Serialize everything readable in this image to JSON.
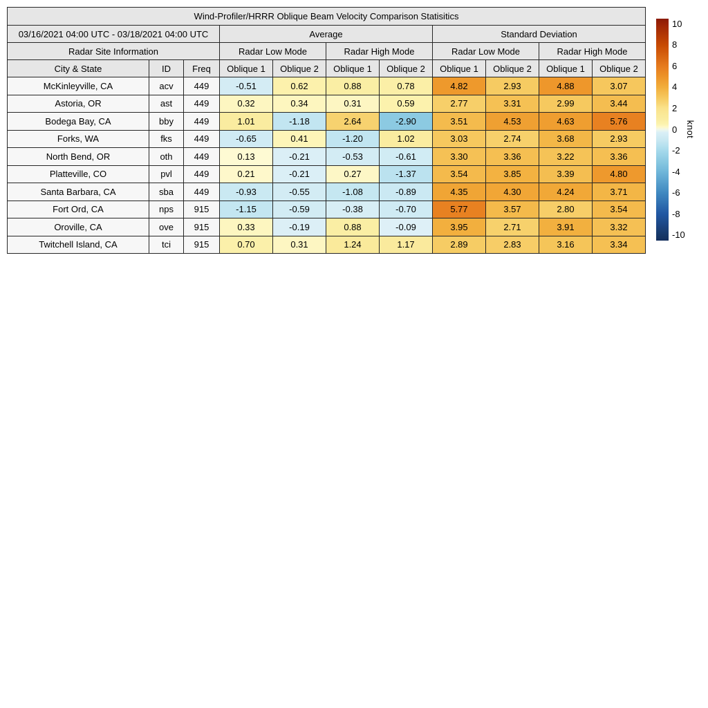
{
  "title": "Wind-Profiler/HRRR Oblique Beam Velocity Comparison Statisitics",
  "table": {
    "date_range": "03/16/2021 04:00 UTC - 03/18/2021 04:00 UTC",
    "group_headers": {
      "average": "Average",
      "std": "Standard Deviation"
    },
    "mode_headers": {
      "site_info": "Radar Site Information",
      "low": "Radar Low Mode",
      "high": "Radar High Mode"
    },
    "col_headers": {
      "city": "City & State",
      "id": "ID",
      "freq": "Freq",
      "oblique1": "Oblique 1",
      "oblique2": "Oblique 2"
    }
  },
  "chart_data": {
    "type": "table",
    "title": "Wind-Profiler/HRRR Oblique Beam Velocity Comparison Statisitics",
    "value_columns": [
      "Average Radar Low Mode Oblique 1",
      "Average Radar Low Mode Oblique 2",
      "Average Radar High Mode Oblique 1",
      "Average Radar High Mode Oblique 2",
      "Standard Deviation Radar Low Mode Oblique 1",
      "Standard Deviation Radar Low Mode Oblique 2",
      "Standard Deviation Radar High Mode Oblique 1",
      "Standard Deviation Radar High Mode Oblique 2"
    ],
    "rows": [
      {
        "city": "McKinleyville, CA",
        "id": "acv",
        "freq": "449",
        "values": [
          -0.51,
          0.62,
          0.88,
          0.78,
          4.82,
          2.93,
          4.88,
          3.07
        ]
      },
      {
        "city": "Astoria, OR",
        "id": "ast",
        "freq": "449",
        "values": [
          0.32,
          0.34,
          0.31,
          0.59,
          2.77,
          3.31,
          2.99,
          3.44
        ]
      },
      {
        "city": "Bodega Bay, CA",
        "id": "bby",
        "freq": "449",
        "values": [
          1.01,
          -1.18,
          2.64,
          -2.9,
          3.51,
          4.53,
          4.63,
          5.76
        ]
      },
      {
        "city": "Forks, WA",
        "id": "fks",
        "freq": "449",
        "values": [
          -0.65,
          0.41,
          -1.2,
          1.02,
          3.03,
          2.74,
          3.68,
          2.93
        ]
      },
      {
        "city": "North Bend, OR",
        "id": "oth",
        "freq": "449",
        "values": [
          0.13,
          -0.21,
          -0.53,
          -0.61,
          3.3,
          3.36,
          3.22,
          3.36
        ]
      },
      {
        "city": "Platteville, CO",
        "id": "pvl",
        "freq": "449",
        "values": [
          0.21,
          -0.21,
          0.27,
          -1.37,
          3.54,
          3.85,
          3.39,
          4.8
        ]
      },
      {
        "city": "Santa Barbara, CA",
        "id": "sba",
        "freq": "449",
        "values": [
          -0.93,
          -0.55,
          -1.08,
          -0.89,
          4.35,
          4.3,
          4.24,
          3.71
        ]
      },
      {
        "city": "Fort Ord, CA",
        "id": "nps",
        "freq": "915",
        "values": [
          -1.15,
          -0.59,
          -0.38,
          -0.7,
          5.77,
          3.57,
          2.8,
          3.54
        ]
      },
      {
        "city": "Oroville, CA",
        "id": "ove",
        "freq": "915",
        "values": [
          0.33,
          -0.19,
          0.88,
          -0.09,
          3.95,
          2.71,
          3.91,
          3.32
        ]
      },
      {
        "city": "Twitchell Island, CA",
        "id": "tci",
        "freq": "915",
        "values": [
          0.7,
          0.31,
          1.24,
          1.17,
          2.89,
          2.83,
          3.16,
          3.34
        ]
      }
    ]
  },
  "colorbar": {
    "unit": "knot",
    "ticks": [
      10,
      8,
      6,
      4,
      2,
      0,
      -2,
      -4,
      -6,
      -8,
      -10
    ],
    "range": [
      -10.5,
      10.5
    ],
    "colormap_stops": [
      [
        -10.5,
        "#142E5C"
      ],
      [
        -10,
        "#173767"
      ],
      [
        -8,
        "#2157A2"
      ],
      [
        -6,
        "#3F88C0"
      ],
      [
        -4,
        "#6FB6D9"
      ],
      [
        -3,
        "#89C8E1"
      ],
      [
        -2,
        "#A5D9EB"
      ],
      [
        -1,
        "#C8E8F2"
      ],
      [
        -0.01,
        "#E0F1F7"
      ],
      [
        0.01,
        "#FFFCDE"
      ],
      [
        0.5,
        "#FCF3B0"
      ],
      [
        1,
        "#FAECA0"
      ],
      [
        2,
        "#FAE38C"
      ],
      [
        3,
        "#F6C95F"
      ],
      [
        4,
        "#F2AE3C"
      ],
      [
        5,
        "#ED9429"
      ],
      [
        6,
        "#E67B1E"
      ],
      [
        8,
        "#C74A02"
      ],
      [
        10,
        "#9B2306"
      ],
      [
        10.5,
        "#8A1A05"
      ]
    ]
  }
}
